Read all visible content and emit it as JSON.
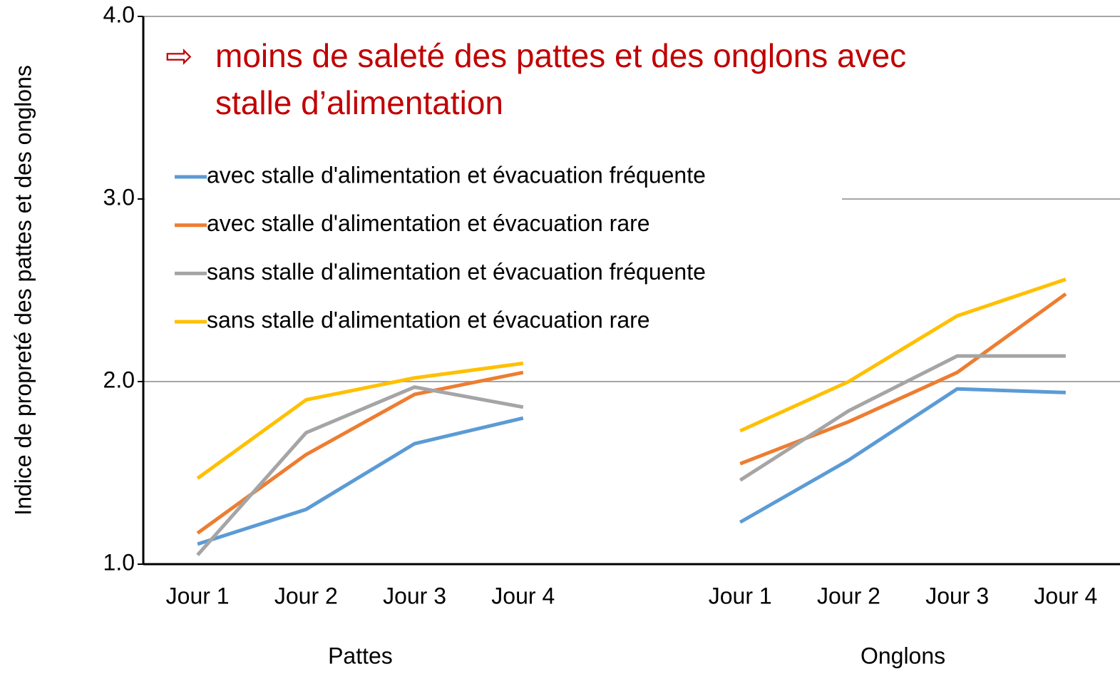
{
  "chart_data": {
    "type": "line",
    "ylabel": "Indice de propreté des pattes et des onglons",
    "annotation_marker": "⇨",
    "annotation": [
      "moins de saleté des pattes et des onglons avec",
      "stalle d’alimentation"
    ],
    "categories": [
      "Jour 1",
      "Jour 2",
      "Jour 3",
      "Jour 4",
      null,
      "Jour 1",
      "Jour 2",
      "Jour 3",
      "Jour 4"
    ],
    "group_labels": [
      "Pattes",
      "Onglons"
    ],
    "ylim": [
      1.0,
      4.0
    ],
    "yticks": [
      {
        "value": 1.0,
        "label": "1.0"
      },
      {
        "value": 2.0,
        "label": "2.0"
      },
      {
        "value": 3.0,
        "label": "3.0"
      },
      {
        "value": 4.0,
        "label": "4.0"
      }
    ],
    "grid": true,
    "series": [
      {
        "name": "avec stalle d'alimentation et évacuation fréquente",
        "color": "#5b9bd5",
        "values": [
          1.11,
          1.3,
          1.66,
          1.8,
          null,
          1.23,
          1.57,
          1.96,
          1.94
        ]
      },
      {
        "name": "avec stalle d'alimentation et évacuation rare",
        "color": "#ed7d31",
        "values": [
          1.17,
          1.6,
          1.93,
          2.05,
          null,
          1.55,
          1.78,
          2.05,
          2.48
        ]
      },
      {
        "name": "sans stalle d'alimentation et évacuation fréquente",
        "color": "#a5a5a5",
        "values": [
          1.05,
          1.72,
          1.97,
          1.86,
          null,
          1.46,
          1.84,
          2.14,
          2.14
        ]
      },
      {
        "name": "sans stalle d'alimentation et évacuation rare",
        "color": "#ffc000",
        "values": [
          1.47,
          1.9,
          2.02,
          2.1,
          null,
          1.73,
          2.0,
          2.36,
          2.56
        ]
      }
    ]
  }
}
